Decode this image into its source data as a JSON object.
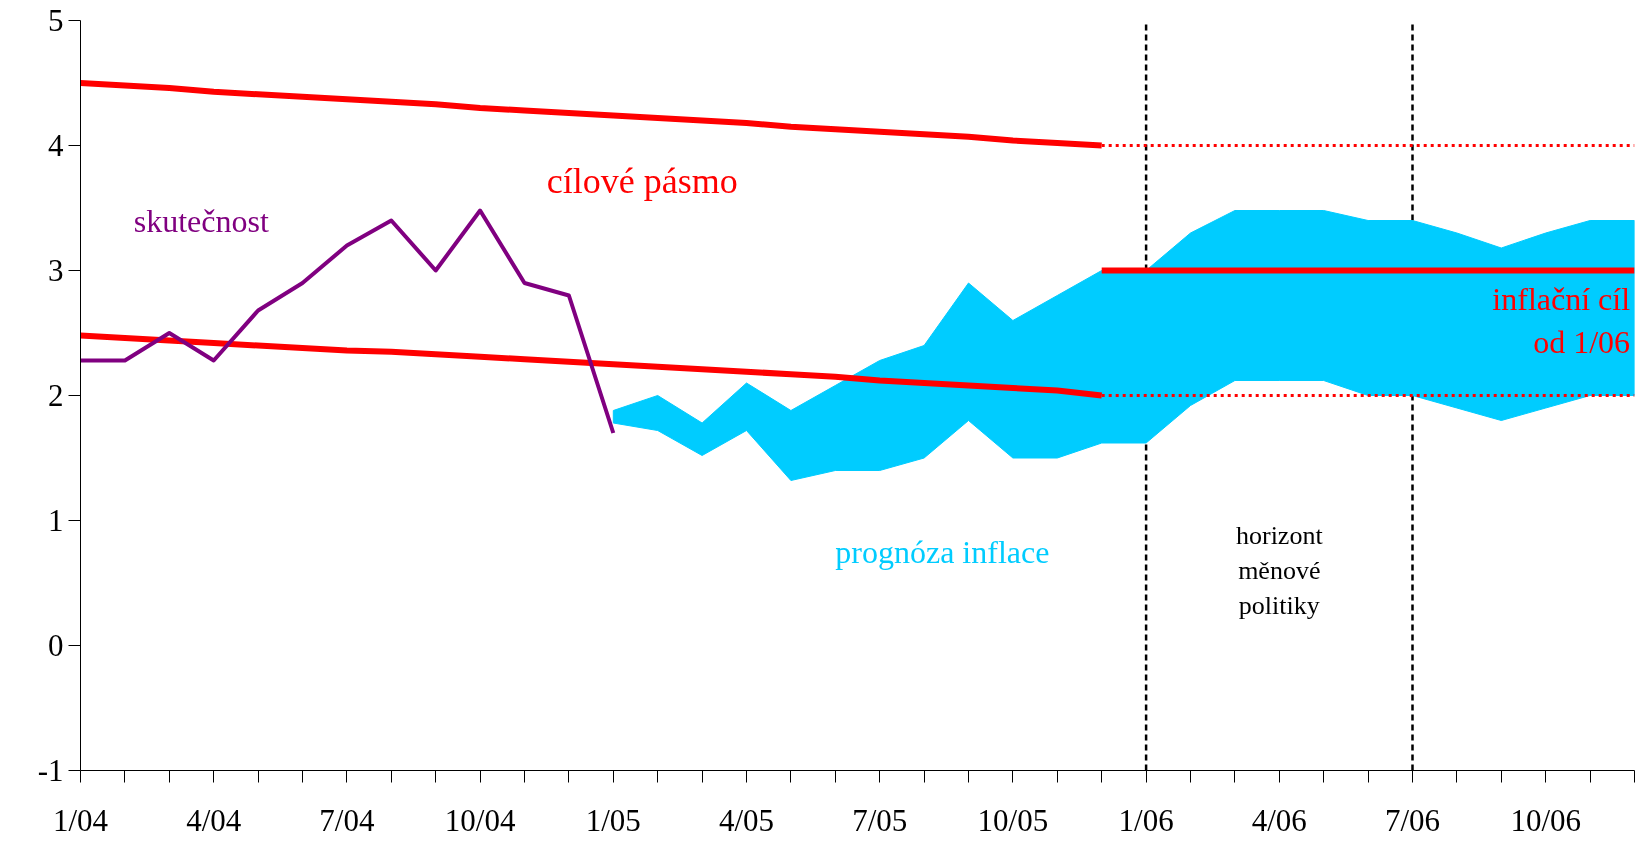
{
  "chart_data": {
    "type": "line",
    "categories": [
      "1/04",
      null,
      null,
      "4/04",
      null,
      null,
      "7/04",
      null,
      null,
      "10/04",
      null,
      null,
      "1/05",
      null,
      null,
      "4/05",
      null,
      null,
      "7/05",
      null,
      null,
      "10/05",
      null,
      null,
      "1/06",
      null,
      null,
      "4/06",
      null,
      null,
      "7/06",
      null,
      null,
      "10/06",
      null,
      null
    ],
    "ylim": [
      -1,
      5
    ],
    "yticks": [
      -1,
      0,
      1,
      2,
      3,
      4,
      5
    ],
    "grid": false,
    "legend": false,
    "series": [
      {
        "name": "prognóza inflace",
        "type": "line",
        "color": "#00ccff",
        "values": [
          null,
          null,
          null,
          null,
          null,
          null,
          null,
          null,
          null,
          null,
          null,
          null,
          null,
          null,
          null,
          null,
          null,
          null,
          null,
          null,
          null,
          null,
          null,
          null,
          null,
          null,
          null,
          null,
          null,
          null,
          null,
          null,
          null,
          null,
          null,
          null
        ],
        "lower": [
          null,
          null,
          null,
          null,
          null,
          null,
          null,
          null,
          null,
          null,
          null,
          null,
          1.78,
          1.72,
          1.52,
          1.72,
          1.32,
          1.4,
          1.4,
          1.5,
          1.8,
          1.5,
          1.5,
          1.62,
          1.62,
          1.92,
          2.12,
          2.12,
          2.12,
          2.0,
          2.0,
          1.9,
          1.8,
          1.9,
          2.0,
          2.0
        ],
        "upper": [
          null,
          null,
          null,
          null,
          null,
          null,
          null,
          null,
          null,
          null,
          null,
          null,
          1.88,
          2.0,
          1.78,
          2.1,
          1.88,
          2.08,
          2.28,
          2.4,
          2.9,
          2.6,
          2.8,
          3.0,
          3.0,
          3.3,
          3.48,
          3.48,
          3.48,
          3.4,
          3.4,
          3.3,
          3.18,
          3.3,
          3.4,
          3.4
        ]
      },
      {
        "name": "cílové pásmo",
        "color": "#ff0000",
        "line_style": "solid",
        "values": [
          4.5,
          4.48,
          4.46,
          4.43,
          4.41,
          4.39,
          4.37,
          4.35,
          4.33,
          4.3,
          4.28,
          4.26,
          4.24,
          4.22,
          4.2,
          4.18,
          4.15,
          4.13,
          4.11,
          4.09,
          4.07,
          4.04,
          4.02,
          4.0,
          null,
          null,
          null,
          null,
          null,
          null,
          null,
          null,
          null,
          null,
          null,
          null
        ]
      },
      {
        "color": "#ff0000",
        "line_style": "solid",
        "values": [
          2.48,
          2.46,
          2.44,
          2.42,
          2.4,
          2.38,
          2.36,
          2.35,
          2.33,
          2.31,
          2.29,
          2.27,
          2.25,
          2.23,
          2.21,
          2.19,
          2.17,
          2.15,
          2.12,
          2.1,
          2.08,
          2.06,
          2.04,
          2.0,
          null,
          null,
          null,
          null,
          null,
          null,
          null,
          null,
          null,
          null,
          null,
          null
        ]
      },
      {
        "color": "#ff0000",
        "line_style": "dotted",
        "values": [
          null,
          null,
          null,
          null,
          null,
          null,
          null,
          null,
          null,
          null,
          null,
          null,
          null,
          null,
          null,
          null,
          null,
          null,
          null,
          null,
          null,
          null,
          null,
          4.0,
          4.0,
          4.0,
          4.0,
          4.0,
          4.0,
          4.0,
          4.0,
          4.0,
          4.0,
          4.0,
          4.0,
          4.0
        ]
      },
      {
        "color": "#ff0000",
        "line_style": "dotted",
        "values": [
          null,
          null,
          null,
          null,
          null,
          null,
          null,
          null,
          null,
          null,
          null,
          null,
          null,
          null,
          null,
          null,
          null,
          null,
          null,
          null,
          null,
          null,
          null,
          2.0,
          2.0,
          2.0,
          2.0,
          2.0,
          2.0,
          2.0,
          2.0,
          2.0,
          2.0,
          2.0,
          2.0,
          2.0
        ]
      },
      {
        "name": "inflační cíl\nod 1/06",
        "color": "#ff0000",
        "line_style": "solid",
        "values": [
          null,
          null,
          null,
          null,
          null,
          null,
          null,
          null,
          null,
          null,
          null,
          null,
          null,
          null,
          null,
          null,
          null,
          null,
          null,
          null,
          null,
          null,
          null,
          3.0,
          3.0,
          3.0,
          3.0,
          3.0,
          3.0,
          3.0,
          3.0,
          3.0,
          3.0,
          3.0,
          3.0,
          3.0
        ]
      },
      {
        "name": "skutečnost",
        "color": "#800080",
        "line_style": "solid",
        "values": [
          2.28,
          2.28,
          2.5,
          2.28,
          2.68,
          2.9,
          3.2,
          3.4,
          3.0,
          3.48,
          2.9,
          2.8,
          1.7,
          null,
          null,
          null,
          null,
          null,
          null,
          null,
          null,
          null,
          null,
          null,
          null,
          null,
          null,
          null,
          null,
          null,
          null,
          null,
          null,
          null,
          null,
          null
        ]
      }
    ],
    "ref_lines": [
      {
        "axis": "x",
        "value": "1/06",
        "color": "#000000",
        "line_style": "dashed"
      },
      {
        "axis": "x",
        "value": "7/06",
        "color": "#000000",
        "line_style": "dashed"
      }
    ],
    "annotations": [
      "horizont\nměnové\npolitiky"
    ]
  }
}
